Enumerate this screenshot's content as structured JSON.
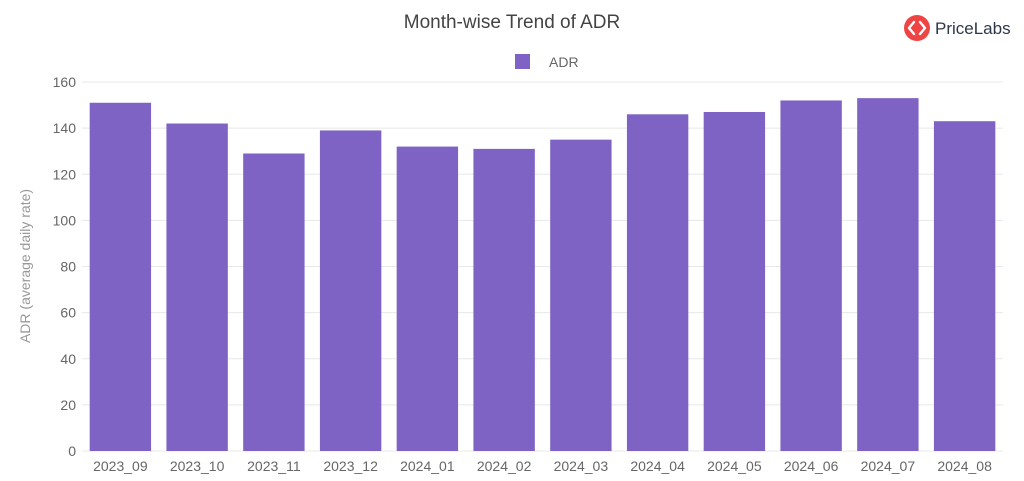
{
  "brand": {
    "name": "PriceLabs",
    "icon": "pricelabs-logo-icon",
    "accent": "#ef4444"
  },
  "chart_data": {
    "type": "bar",
    "title": "Month-wise Trend of ADR",
    "xlabel": "",
    "ylabel": "ADR (average daily rate)",
    "ylim": [
      0,
      160
    ],
    "yticks": [
      0,
      20,
      40,
      60,
      80,
      100,
      120,
      140,
      160
    ],
    "grid": true,
    "legend_position": "top-center",
    "categories": [
      "2023_09",
      "2023_10",
      "2023_11",
      "2023_12",
      "2024_01",
      "2024_02",
      "2024_03",
      "2024_04",
      "2024_05",
      "2024_06",
      "2024_07",
      "2024_08"
    ],
    "series": [
      {
        "name": "ADR",
        "color": "#7e63c4",
        "values": [
          151,
          142,
          129,
          139,
          132,
          131,
          135,
          146,
          147,
          152,
          153,
          143
        ]
      }
    ]
  }
}
